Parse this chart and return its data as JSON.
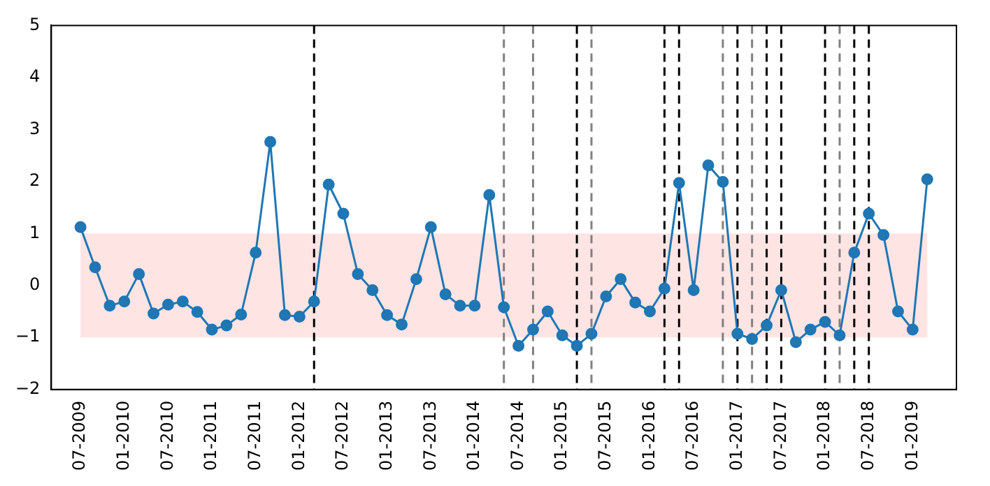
{
  "chart_data": {
    "type": "line",
    "x": [
      "2009-07",
      "2009-09",
      "2009-11",
      "2010-01",
      "2010-03",
      "2010-05",
      "2010-07",
      "2010-09",
      "2010-11",
      "2011-01",
      "2011-03",
      "2011-05",
      "2011-07",
      "2011-09",
      "2011-11",
      "2012-01",
      "2012-03",
      "2012-05",
      "2012-07",
      "2012-09",
      "2012-11",
      "2013-01",
      "2013-03",
      "2013-05",
      "2013-07",
      "2013-09",
      "2013-11",
      "2014-01",
      "2014-03",
      "2014-05",
      "2014-07",
      "2014-09",
      "2014-11",
      "2015-01",
      "2015-03",
      "2015-05",
      "2015-07",
      "2015-09",
      "2015-11",
      "2016-01",
      "2016-03",
      "2016-05",
      "2016-07",
      "2016-09",
      "2016-11",
      "2017-01",
      "2017-03",
      "2017-05",
      "2017-07",
      "2017-09",
      "2017-11",
      "2018-01",
      "2018-03",
      "2018-05",
      "2018-07",
      "2018-09",
      "2018-11",
      "2019-01",
      "2019-03"
    ],
    "series": [
      {
        "color": "#1f77b4",
        "values": [
          1.12,
          0.35,
          -0.39,
          -0.31,
          0.22,
          -0.54,
          -0.37,
          -0.31,
          -0.51,
          -0.85,
          -0.77,
          -0.56,
          0.63,
          2.76,
          -0.57,
          -0.6,
          -0.31,
          1.94,
          1.38,
          0.22,
          -0.09,
          -0.57,
          -0.75,
          0.12,
          1.12,
          -0.17,
          -0.39,
          -0.39,
          1.74,
          -0.42,
          -1.16,
          -0.85,
          -0.5,
          -0.96,
          -1.16,
          -0.93,
          -0.21,
          0.12,
          -0.33,
          -0.5,
          -0.06,
          1.97,
          -0.09,
          2.31,
          1.99,
          -0.93,
          -1.03,
          -0.77,
          -0.09,
          -1.09,
          -0.85,
          -0.7,
          -0.96,
          0.63,
          1.38,
          0.97,
          -0.5,
          -0.85,
          2.04
        ]
      }
    ],
    "xlim": [
      "2009-03",
      "2019-07"
    ],
    "xticks": [
      {
        "value": "2009-07",
        "label": "07-2009"
      },
      {
        "value": "2010-01",
        "label": "01-2010"
      },
      {
        "value": "2010-07",
        "label": "07-2010"
      },
      {
        "value": "2011-01",
        "label": "01-2011"
      },
      {
        "value": "2011-07",
        "label": "07-2011"
      },
      {
        "value": "2012-01",
        "label": "01-2012"
      },
      {
        "value": "2012-07",
        "label": "07-2012"
      },
      {
        "value": "2013-01",
        "label": "01-2013"
      },
      {
        "value": "2013-07",
        "label": "07-2013"
      },
      {
        "value": "2014-01",
        "label": "01-2014"
      },
      {
        "value": "2014-07",
        "label": "07-2014"
      },
      {
        "value": "2015-01",
        "label": "01-2015"
      },
      {
        "value": "2015-07",
        "label": "07-2015"
      },
      {
        "value": "2016-01",
        "label": "01-2016"
      },
      {
        "value": "2016-07",
        "label": "07-2016"
      },
      {
        "value": "2017-01",
        "label": "01-2017"
      },
      {
        "value": "2017-07",
        "label": "07-2017"
      },
      {
        "value": "2018-01",
        "label": "01-2018"
      },
      {
        "value": "2018-07",
        "label": "07-2018"
      },
      {
        "value": "2019-01",
        "label": "01-2019"
      }
    ],
    "ylim": [
      -2,
      5
    ],
    "yticks": [
      -2,
      -1,
      0,
      1,
      2,
      3,
      4,
      5
    ],
    "grid": false,
    "legend": false,
    "marker": "circle",
    "line_style": "solid",
    "bands": [
      {
        "axis": "y",
        "from": -1,
        "to": 1,
        "color": "#ffe1e1"
      }
    ],
    "ref_lines": [
      {
        "axis": "x",
        "value": "2012-03",
        "color": "#000000",
        "line_style": "dashed"
      },
      {
        "axis": "x",
        "value": "2014-05",
        "color": "#808080",
        "line_style": "dashed"
      },
      {
        "axis": "x",
        "value": "2014-09",
        "color": "#808080",
        "line_style": "dashed"
      },
      {
        "axis": "x",
        "value": "2015-03",
        "color": "#000000",
        "line_style": "dashed"
      },
      {
        "axis": "x",
        "value": "2015-05",
        "color": "#808080",
        "line_style": "dashed"
      },
      {
        "axis": "x",
        "value": "2016-03",
        "color": "#000000",
        "line_style": "dashed"
      },
      {
        "axis": "x",
        "value": "2016-05",
        "color": "#000000",
        "line_style": "dashed"
      },
      {
        "axis": "x",
        "value": "2016-11",
        "color": "#808080",
        "line_style": "dashed"
      },
      {
        "axis": "x",
        "value": "2017-01",
        "color": "#000000",
        "line_style": "dashed"
      },
      {
        "axis": "x",
        "value": "2017-03",
        "color": "#808080",
        "line_style": "dashed"
      },
      {
        "axis": "x",
        "value": "2017-05",
        "color": "#000000",
        "line_style": "dashed"
      },
      {
        "axis": "x",
        "value": "2017-07",
        "color": "#000000",
        "line_style": "dashed"
      },
      {
        "axis": "x",
        "value": "2018-01",
        "color": "#000000",
        "line_style": "dashed"
      },
      {
        "axis": "x",
        "value": "2018-03",
        "color": "#808080",
        "line_style": "dashed"
      },
      {
        "axis": "x",
        "value": "2018-05",
        "color": "#000000",
        "line_style": "dashed"
      },
      {
        "axis": "x",
        "value": "2018-07",
        "color": "#000000",
        "line_style": "dashed"
      }
    ]
  }
}
